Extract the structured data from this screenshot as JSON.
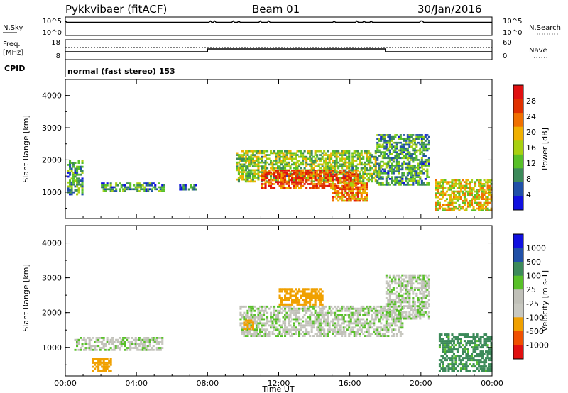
{
  "header": {
    "radar": "Pykkvibaer (fitACF)",
    "beam": "Beam 01",
    "date": "30/Jan/2016"
  },
  "noise_panel": {
    "left_label": "N.Sky",
    "right_label": "N.Search",
    "left_ticks": [
      "10^5",
      "10^0"
    ],
    "right_ticks": [
      "10^5",
      "10^0"
    ]
  },
  "freq_panel": {
    "left_label_1": "Freq.",
    "left_label_2": "[MHz]",
    "right_label": "Nave",
    "left_ticks": [
      "18",
      "8"
    ],
    "right_ticks": [
      "60",
      "0"
    ],
    "cpid_label": "CPID",
    "cpid_text": "normal (fast stereo) 153"
  },
  "colors": {
    "power": [
      "#1010e0",
      "#2050a8",
      "#3c8a5a",
      "#58c028",
      "#a8d010",
      "#f0b000",
      "#f07000",
      "#e03000",
      "#e01010"
    ],
    "velocity": [
      "#e01010",
      "#f05000",
      "#f0a000",
      "#c8c8c0",
      "#c0c0b8",
      "#58c028",
      "#3c8a5a",
      "#2050a8",
      "#1010e0"
    ]
  },
  "chart_data": [
    {
      "type": "heatmap",
      "name": "power",
      "ylabel": "Slant Range [km]",
      "yticks": [
        "4000",
        "3000",
        "2000",
        "1000"
      ],
      "ylim": [
        180,
        4500
      ],
      "xlim_hours": [
        0,
        24
      ],
      "colorbar_label": "Power [dB]",
      "colorbar_ticks": [
        "28",
        "24",
        "20",
        "16",
        "12",
        "8",
        "4"
      ],
      "colorbar_range": [
        0,
        32
      ],
      "echo_regions": [
        {
          "t0": 0.1,
          "t1": 1.0,
          "r0": 900,
          "r1": 2000,
          "value": 10
        },
        {
          "t0": 2.0,
          "t1": 5.6,
          "r0": 1000,
          "r1": 1300,
          "value": 9
        },
        {
          "t0": 6.4,
          "t1": 7.4,
          "r0": 1050,
          "r1": 1250,
          "value": 7
        },
        {
          "t0": 9.6,
          "t1": 17.5,
          "r0": 1300,
          "r1": 2300,
          "value": 14
        },
        {
          "t0": 11.0,
          "t1": 16.5,
          "r0": 1100,
          "r1": 1700,
          "value": 26
        },
        {
          "t0": 15.0,
          "t1": 17.0,
          "r0": 700,
          "r1": 1300,
          "value": 22
        },
        {
          "t0": 17.5,
          "t1": 20.5,
          "r0": 1200,
          "r1": 2800,
          "value": 10
        },
        {
          "t0": 20.8,
          "t1": 24.0,
          "r0": 400,
          "r1": 1400,
          "value": 18
        }
      ]
    },
    {
      "type": "heatmap",
      "name": "velocity",
      "ylabel": "Slant Range [km]",
      "yticks": [
        "4000",
        "3000",
        "2000",
        "1000"
      ],
      "ylim": [
        180,
        4500
      ],
      "xlim_hours": [
        0,
        24
      ],
      "xticks": [
        "00:00",
        "04:00",
        "08:00",
        "12:00",
        "16:00",
        "20:00",
        "00:00"
      ],
      "xlabel": "Time UT",
      "colorbar_label": "Velocity [m s-1]",
      "colorbar_ticks": [
        "1000",
        "500",
        "100",
        "25",
        "-25",
        "-100",
        "-500",
        "-1000"
      ],
      "echo_regions": [
        {
          "t0": 0.5,
          "t1": 5.5,
          "r0": 900,
          "r1": 1300,
          "value": 0
        },
        {
          "t0": 1.5,
          "t1": 2.6,
          "r0": 300,
          "r1": 700,
          "value": -200
        },
        {
          "t0": 9.8,
          "t1": 19.0,
          "r0": 1300,
          "r1": 2200,
          "value": 0
        },
        {
          "t0": 12.0,
          "t1": 14.5,
          "r0": 2200,
          "r1": 2700,
          "value": -300
        },
        {
          "t0": 10.0,
          "t1": 10.6,
          "r0": 1500,
          "r1": 1800,
          "value": -400
        },
        {
          "t0": 18.0,
          "t1": 20.5,
          "r0": 1800,
          "r1": 3100,
          "value": 0
        },
        {
          "t0": 21.0,
          "t1": 24.0,
          "r0": 300,
          "r1": 1400,
          "value": 150
        }
      ]
    }
  ]
}
